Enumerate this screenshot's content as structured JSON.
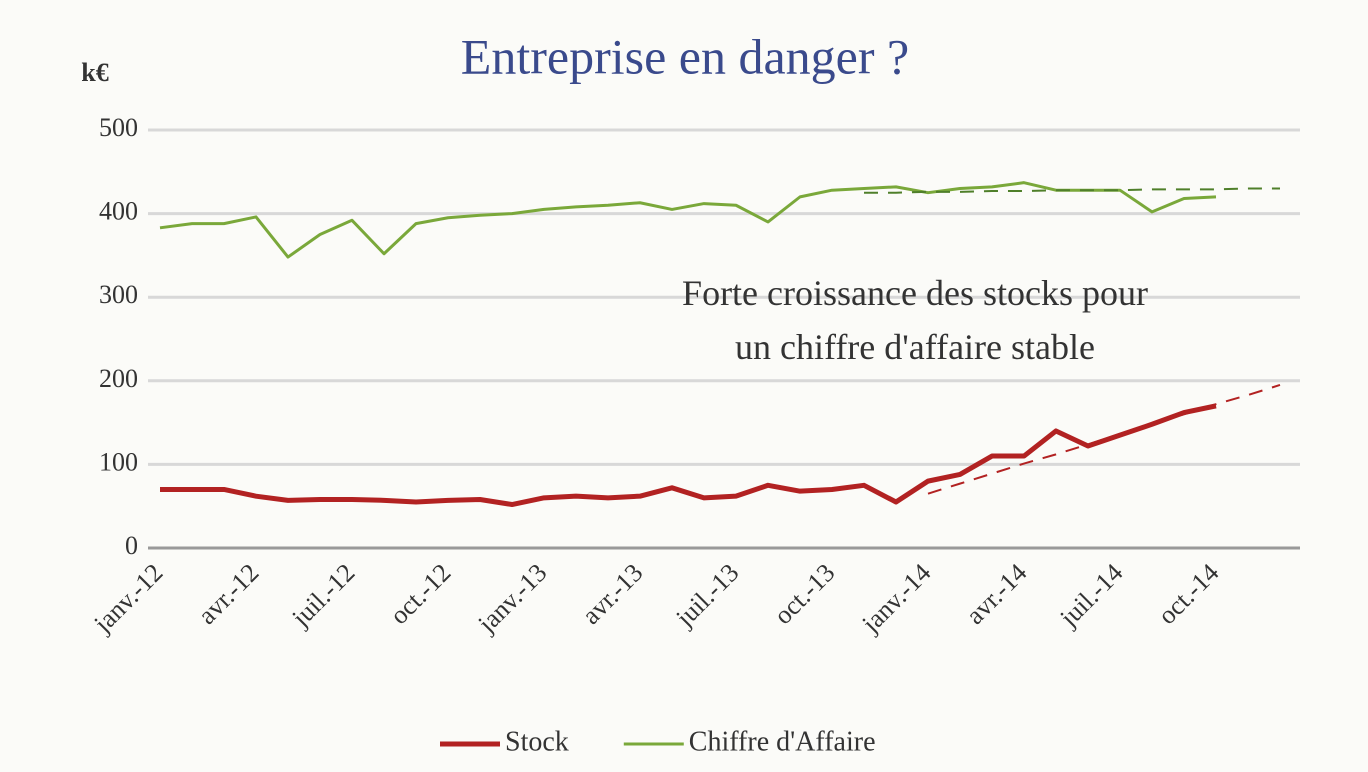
{
  "chart_data": {
    "type": "line",
    "title": "Entreprise en danger ?",
    "y_unit": "k€",
    "annotation": "Forte croissance des stocks pour\nun chiffre d'affaire stable",
    "categories": [
      "janv.-12",
      null,
      null,
      "avr.-12",
      null,
      null,
      "juil.-12",
      null,
      null,
      "oct.-12",
      null,
      null,
      "janv.-13",
      null,
      null,
      "avr.-13",
      null,
      null,
      "juil.-13",
      null,
      null,
      "oct.-13",
      null,
      null,
      "janv.-14",
      null,
      null,
      "avr.-14",
      null,
      null,
      "juil.-14",
      null,
      null,
      "oct.-14",
      null,
      null
    ],
    "ylim": [
      0,
      500
    ],
    "yticks": [
      0,
      100,
      200,
      300,
      400,
      500
    ],
    "grid": true,
    "legend": "bottom",
    "series": [
      {
        "name": "Stock",
        "color": "#b22222",
        "width": 5,
        "values": [
          70,
          70,
          70,
          62,
          57,
          58,
          58,
          57,
          55,
          57,
          58,
          52,
          60,
          62,
          60,
          62,
          72,
          60,
          62,
          75,
          68,
          70,
          75,
          55,
          80,
          88,
          110,
          110,
          140,
          122,
          135,
          148,
          162,
          170,
          null,
          null
        ]
      },
      {
        "name": "Chiffre d'Affaire",
        "color": "#7aa83a",
        "width": 3,
        "values": [
          383,
          388,
          388,
          396,
          348,
          375,
          392,
          352,
          388,
          395,
          398,
          400,
          405,
          408,
          410,
          413,
          405,
          412,
          410,
          390,
          420,
          428,
          430,
          432,
          425,
          430,
          432,
          437,
          428,
          428,
          428,
          402,
          418,
          420,
          null,
          null
        ]
      },
      {
        "color": "#b22222",
        "dash": true,
        "width": 2,
        "values": [
          null,
          null,
          null,
          null,
          null,
          null,
          null,
          null,
          null,
          null,
          null,
          null,
          null,
          null,
          null,
          null,
          null,
          null,
          null,
          null,
          null,
          null,
          null,
          null,
          65,
          77,
          89,
          101,
          112,
          124,
          136,
          148,
          160,
          172,
          183,
          195
        ]
      },
      {
        "color": "#4f7f2a",
        "dash": true,
        "width": 2,
        "values": [
          null,
          null,
          null,
          null,
          null,
          null,
          null,
          null,
          null,
          null,
          null,
          null,
          null,
          null,
          null,
          null,
          null,
          null,
          null,
          null,
          null,
          null,
          425,
          425,
          426,
          426,
          427,
          427,
          428,
          428,
          428,
          429,
          429,
          429,
          430,
          430
        ]
      }
    ]
  }
}
